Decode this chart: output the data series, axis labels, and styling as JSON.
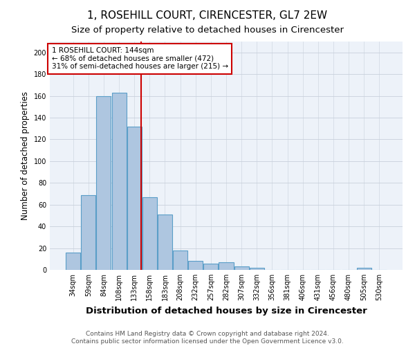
{
  "title": "1, ROSEHILL COURT, CIRENCESTER, GL7 2EW",
  "subtitle": "Size of property relative to detached houses in Cirencester",
  "xlabel": "Distribution of detached houses by size in Cirencester",
  "ylabel": "Number of detached properties",
  "categories": [
    "34sqm",
    "59sqm",
    "84sqm",
    "108sqm",
    "133sqm",
    "158sqm",
    "183sqm",
    "208sqm",
    "232sqm",
    "257sqm",
    "282sqm",
    "307sqm",
    "332sqm",
    "356sqm",
    "381sqm",
    "406sqm",
    "431sqm",
    "456sqm",
    "480sqm",
    "505sqm",
    "530sqm"
  ],
  "values": [
    16,
    69,
    160,
    163,
    132,
    67,
    51,
    18,
    8,
    6,
    7,
    3,
    2,
    0,
    0,
    0,
    0,
    0,
    0,
    2,
    0
  ],
  "bar_color": "#aec6e0",
  "bar_edge_color": "#5a9ec8",
  "vline_color": "#cc0000",
  "annotation_text": "1 ROSEHILL COURT: 144sqm\n← 68% of detached houses are smaller (472)\n31% of semi-detached houses are larger (215) →",
  "annotation_box_facecolor": "#ffffff",
  "annotation_box_edgecolor": "#cc0000",
  "ylim": [
    0,
    210
  ],
  "yticks": [
    0,
    20,
    40,
    60,
    80,
    100,
    120,
    140,
    160,
    180,
    200
  ],
  "bg_color": "#edf2f9",
  "footer_line1": "Contains HM Land Registry data © Crown copyright and database right 2024.",
  "footer_line2": "Contains public sector information licensed under the Open Government Licence v3.0.",
  "title_fontsize": 11,
  "subtitle_fontsize": 9.5,
  "tick_fontsize": 7,
  "ylabel_fontsize": 8.5,
  "xlabel_fontsize": 9.5,
  "annotation_fontsize": 7.5,
  "footer_fontsize": 6.5
}
